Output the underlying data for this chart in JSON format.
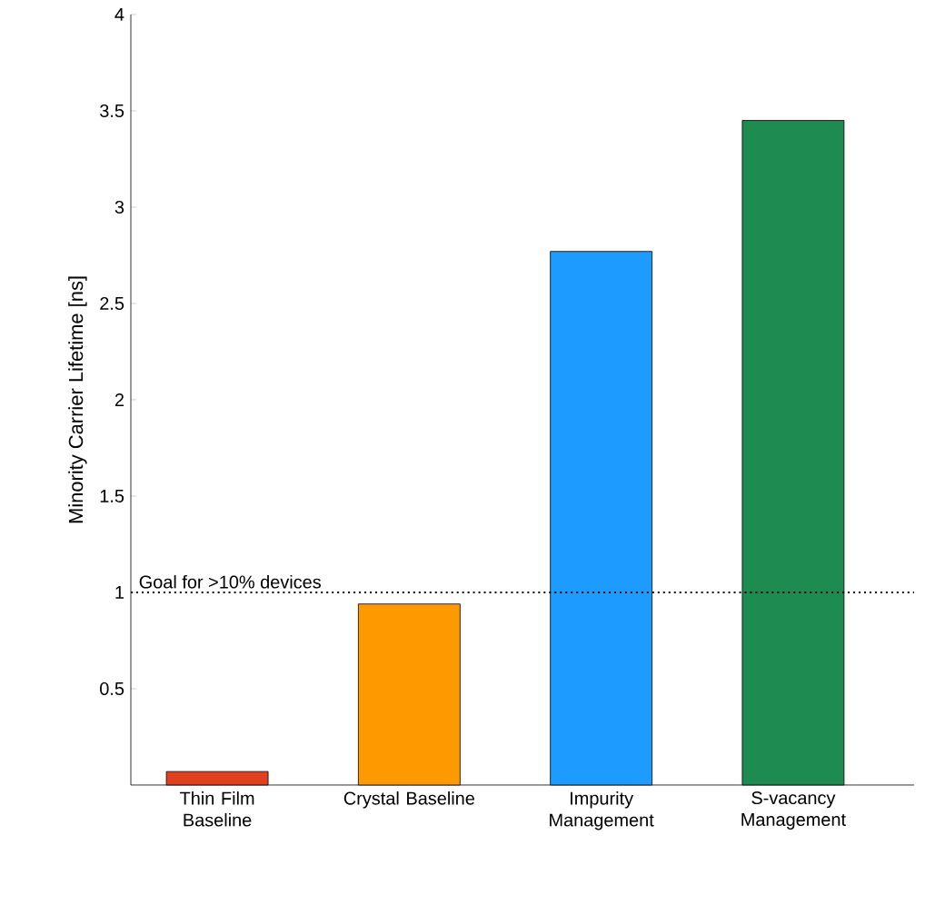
{
  "chart_data": {
    "type": "bar",
    "ylabel": "Minority Carrier Lifetime [ns]",
    "categories": [
      "Thin Film Baseline",
      "Crystal Baseline",
      "Impurity Management",
      "S-vacancy Management"
    ],
    "values": [
      0.07,
      0.94,
      2.77,
      3.45
    ],
    "colors": [
      "#e0401e",
      "#ff9900",
      "#1e9bff",
      "#1e8c50"
    ],
    "ylim": [
      0,
      4
    ],
    "yticks": [
      0.5,
      1,
      1.5,
      2,
      2.5,
      3,
      3.5,
      4
    ],
    "ref_lines": [
      {
        "axis": "y",
        "value": 1,
        "label": "Goal for >10% devices",
        "line_style": "dotted"
      }
    ]
  }
}
